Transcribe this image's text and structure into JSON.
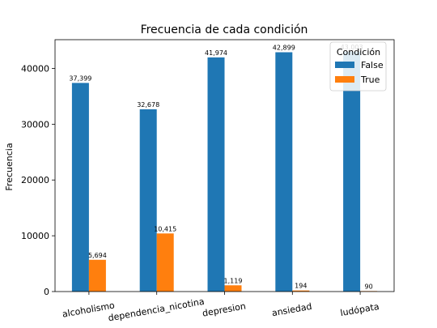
{
  "chart_data": {
    "type": "bar",
    "title": "Frecuencia de cada condición",
    "xlabel": "",
    "ylabel": "Frecuencia",
    "categories": [
      "alcoholismo",
      "dependencia_nicotina",
      "depresion",
      "ansiedad",
      "ludópata"
    ],
    "series": [
      {
        "name": "False",
        "values": [
          37399,
          32678,
          41974,
          42899,
          43003
        ],
        "labels": [
          "37,399",
          "32,678",
          "41,974",
          "42,899",
          "43,003"
        ],
        "color": "#1f77b4"
      },
      {
        "name": "True",
        "values": [
          5694,
          10415,
          1119,
          194,
          90
        ],
        "labels": [
          "5,694",
          "10,415",
          "1,119",
          "194",
          "90"
        ],
        "color": "#ff7f0e"
      }
    ],
    "ylim": [
      0,
      45151
    ],
    "yticks": [
      0,
      10000,
      20000,
      30000,
      40000
    ],
    "ytick_labels": [
      "0",
      "10000",
      "20000",
      "30000",
      "40000"
    ],
    "grid": false,
    "legend": {
      "title": "Condición",
      "placement": "top-right"
    }
  }
}
